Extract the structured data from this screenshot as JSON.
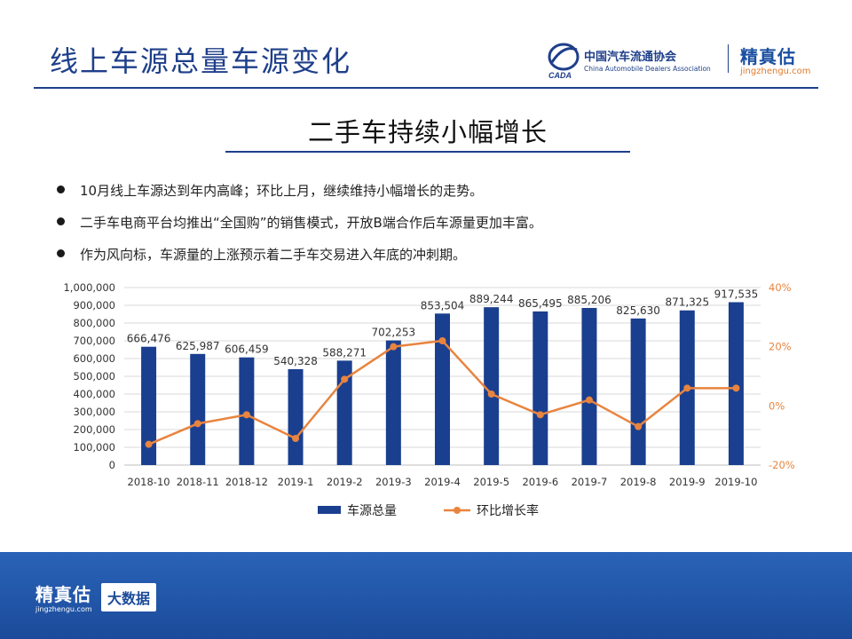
{
  "header": {
    "title": "线上车源总量车源变化",
    "org_name": "中国汽车流通协会",
    "org_name_en": "China Automobile Dealers Association",
    "org_abbr": "CADA",
    "brand_name": "精真估",
    "brand_domain": "jingzhengu.com"
  },
  "headline": "二手车持续小幅增长",
  "bullets": [
    "10月线上车源达到年内高峰；环比上月，继续维持小幅增长的走势。",
    "二手车电商平台均推出“全国购”的销售模式，开放B端合作后车源量更加丰富。",
    "作为风向标，车源量的上涨预示着二手车交易进入年底的冲刺期。"
  ],
  "footer": {
    "brand_name": "精真估",
    "brand_domain": "jingzhengu.com",
    "tag": "大数据"
  },
  "colors": {
    "primary": "#1e3f8a",
    "bar": "#1b3f8f",
    "line": "#e8843f",
    "footer": "#1b4b9a"
  },
  "chart_data": {
    "type": "bar",
    "categories": [
      "2018-10",
      "2018-11",
      "2018-12",
      "2019-1",
      "2019-2",
      "2019-3",
      "2019-4",
      "2019-5",
      "2019-6",
      "2019-7",
      "2019-8",
      "2019-9",
      "2019-10"
    ],
    "series": [
      {
        "name": "车源总量",
        "type": "bar",
        "axis": "left",
        "values": [
          666476,
          625987,
          606459,
          540328,
          588271,
          702253,
          853504,
          889244,
          865495,
          885206,
          825630,
          871325,
          917535
        ],
        "labels": [
          "666,476",
          "625,987",
          "606,459",
          "540,328",
          "588,271",
          "702,253",
          "853,504",
          "889,244",
          "865,495",
          "885,206",
          "825,630",
          "871,325",
          "917,535"
        ]
      },
      {
        "name": "环比增长率",
        "type": "line",
        "axis": "right",
        "values": [
          -13,
          -6,
          -3,
          -11,
          9,
          20,
          22,
          4,
          -3,
          2,
          -7,
          6,
          6
        ]
      }
    ],
    "y_left": {
      "min": 0,
      "max": 1000000,
      "ticks": [
        0,
        100000,
        200000,
        300000,
        400000,
        500000,
        600000,
        700000,
        800000,
        900000,
        1000000
      ],
      "tick_labels": [
        "0",
        "100,000",
        "200,000",
        "300,000",
        "400,000",
        "500,000",
        "600,000",
        "700,000",
        "800,000",
        "900,000",
        "1,000,000"
      ]
    },
    "y_right": {
      "min": -20,
      "max": 40,
      "ticks": [
        -20,
        0,
        20,
        40
      ],
      "tick_labels": [
        "-20%",
        "0%",
        "20%",
        "40%"
      ]
    },
    "grid": true,
    "legend": "bottom"
  }
}
